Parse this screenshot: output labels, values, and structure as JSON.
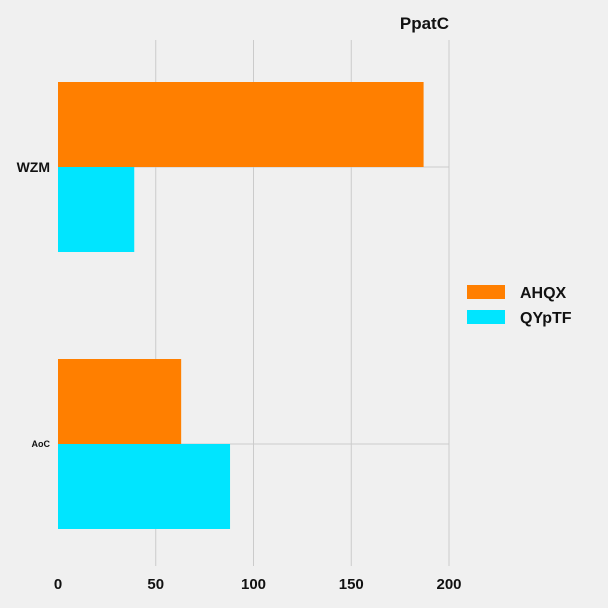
{
  "chart_data": {
    "type": "bar",
    "orientation": "horizontal",
    "title": "PpatC",
    "categories": [
      "WZM",
      "AoC"
    ],
    "series": [
      {
        "name": "AHQX",
        "values": [
          187,
          63
        ],
        "color": "#ff7f00"
      },
      {
        "name": "QYpTF",
        "values": [
          39,
          88
        ],
        "color": "#00e5ff"
      }
    ],
    "xlim": [
      0,
      200
    ],
    "xticks": [
      0,
      50,
      100,
      150,
      200
    ],
    "xlabel": "",
    "ylabel": "",
    "grid": true,
    "legend_position": "right"
  }
}
